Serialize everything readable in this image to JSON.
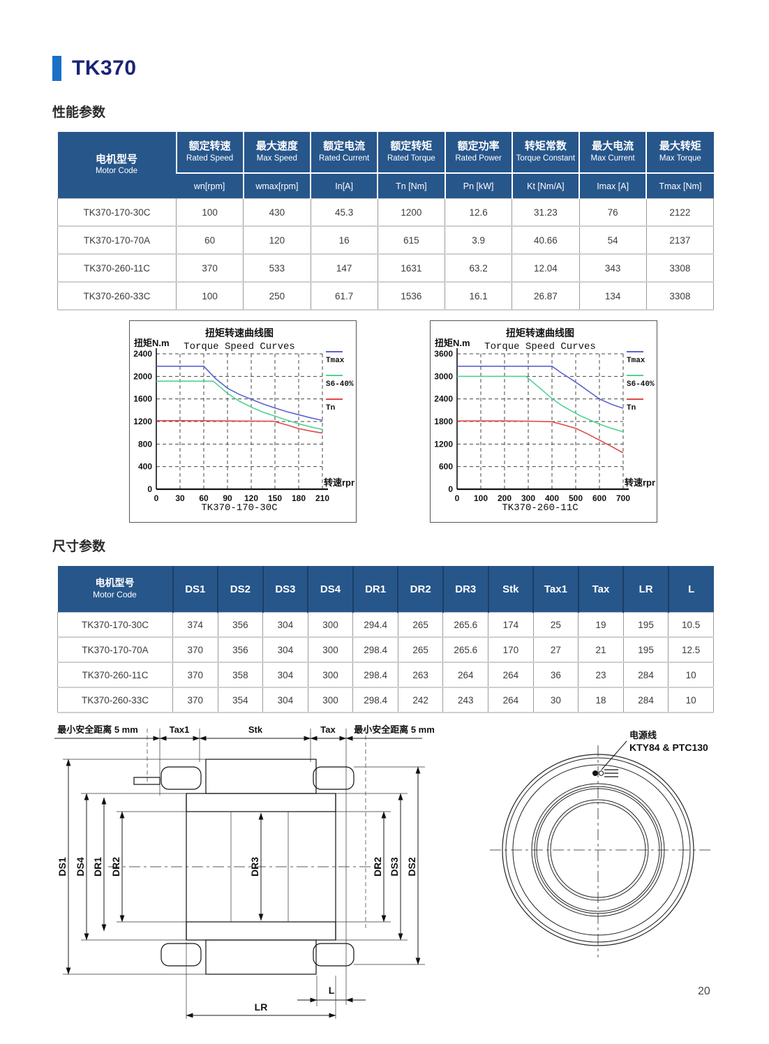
{
  "page": {
    "title": "TK370",
    "page_number": "20"
  },
  "sections": {
    "performance": "性能参数",
    "dimensions": "尺寸参数"
  },
  "perf_table": {
    "col0_zh": "电机型号",
    "col0_en": "Motor Code",
    "columns": [
      {
        "zh": "额定转速",
        "en": "Rated Speed",
        "unit": "wn[rpm]"
      },
      {
        "zh": "最大速度",
        "en": "Max Speed",
        "unit": "wmax[rpm]"
      },
      {
        "zh": "额定电流",
        "en": "Rated Current",
        "unit": "In[A]"
      },
      {
        "zh": "额定转矩",
        "en": "Rated Torque",
        "unit": "Tn [Nm]"
      },
      {
        "zh": "额定功率",
        "en": "Rated Power",
        "unit": "Pn [kW]"
      },
      {
        "zh": "转矩常数",
        "en": "Torque Constant",
        "unit": "Kt [Nm/A]"
      },
      {
        "zh": "最大电流",
        "en": "Max Current",
        "unit": "Imax [A]"
      },
      {
        "zh": "最大转矩",
        "en": "Max Torque",
        "unit": "Tmax [Nm]"
      }
    ],
    "rows": [
      [
        "TK370-170-30C",
        "100",
        "430",
        "45.3",
        "1200",
        "12.6",
        "31.23",
        "76",
        "2122"
      ],
      [
        "TK370-170-70A",
        "60",
        "120",
        "16",
        "615",
        "3.9",
        "40.66",
        "54",
        "2137"
      ],
      [
        "TK370-260-11C",
        "370",
        "533",
        "147",
        "1631",
        "63.2",
        "12.04",
        "343",
        "3308"
      ],
      [
        "TK370-260-33C",
        "100",
        "250",
        "61.7",
        "1536",
        "16.1",
        "26.87",
        "134",
        "3308"
      ]
    ]
  },
  "dim_table": {
    "col0_zh": "电机型号",
    "col0_en": "Motor Code",
    "columns": [
      "DS1",
      "DS2",
      "DS3",
      "DS4",
      "DR1",
      "DR2",
      "DR3",
      "Stk",
      "Tax1",
      "Tax",
      "LR",
      "L"
    ],
    "rows": [
      [
        "TK370-170-30C",
        "374",
        "356",
        "304",
        "300",
        "294.4",
        "265",
        "265.6",
        "174",
        "25",
        "19",
        "195",
        "10.5"
      ],
      [
        "TK370-170-70A",
        "370",
        "356",
        "304",
        "300",
        "298.4",
        "265",
        "265.6",
        "170",
        "27",
        "21",
        "195",
        "12.5"
      ],
      [
        "TK370-260-11C",
        "370",
        "358",
        "304",
        "300",
        "298.4",
        "263",
        "264",
        "264",
        "36",
        "23",
        "284",
        "10"
      ],
      [
        "TK370-260-33C",
        "370",
        "354",
        "304",
        "300",
        "298.4",
        "242",
        "243",
        "264",
        "30",
        "18",
        "284",
        "10"
      ]
    ]
  },
  "chart_data": [
    {
      "type": "line",
      "title_zh": "扭矩转速曲线图",
      "title_en": "Torque Speed Curves",
      "ylabel": "扭矩N.m",
      "xlabel": "转速rpm",
      "caption": "TK370-170-30C",
      "xlim": [
        0,
        210
      ],
      "ylim": [
        0,
        2400
      ],
      "xticks": [
        0,
        30,
        60,
        90,
        120,
        150,
        180,
        210
      ],
      "yticks": [
        0,
        400,
        800,
        1200,
        1600,
        2000,
        2400
      ],
      "grid": true,
      "legend_position": "right",
      "series": [
        {
          "name": "Tmax",
          "color": "#5a62d2",
          "points": [
            [
              0,
              2180
            ],
            [
              30,
              2180
            ],
            [
              60,
              2180
            ],
            [
              75,
              1960
            ],
            [
              90,
              1790
            ],
            [
              105,
              1680
            ],
            [
              120,
              1595
            ],
            [
              135,
              1510
            ],
            [
              150,
              1440
            ],
            [
              165,
              1375
            ],
            [
              180,
              1320
            ],
            [
              195,
              1265
            ],
            [
              210,
              1220
            ]
          ]
        },
        {
          "name": "S6-40%",
          "color": "#4fd391",
          "points": [
            [
              0,
              1915
            ],
            [
              30,
              1915
            ],
            [
              60,
              1915
            ],
            [
              72,
              1915
            ],
            [
              90,
              1700
            ],
            [
              105,
              1560
            ],
            [
              120,
              1455
            ],
            [
              135,
              1365
            ],
            [
              150,
              1295
            ],
            [
              165,
              1225
            ],
            [
              180,
              1160
            ],
            [
              195,
              1105
            ],
            [
              210,
              1060
            ]
          ]
        },
        {
          "name": "Tn",
          "color": "#e04848",
          "points": [
            [
              0,
              1215
            ],
            [
              60,
              1213
            ],
            [
              120,
              1208
            ],
            [
              148,
              1205
            ],
            [
              165,
              1140
            ],
            [
              180,
              1075
            ],
            [
              195,
              1030
            ],
            [
              210,
              995
            ]
          ]
        }
      ]
    },
    {
      "type": "line",
      "title_zh": "扭矩转速曲线图",
      "title_en": "Torque Speed Curves",
      "ylabel": "扭矩N.m",
      "xlabel": "转速rpm",
      "caption": "TK370-260-11C",
      "xlim": [
        0,
        700
      ],
      "ylim": [
        0,
        3600
      ],
      "xticks": [
        0,
        100,
        200,
        300,
        400,
        500,
        600,
        700
      ],
      "yticks": [
        0,
        600,
        1200,
        1800,
        2400,
        3000,
        3600
      ],
      "grid": true,
      "legend_position": "right",
      "series": [
        {
          "name": "Tmax",
          "color": "#5a62d2",
          "points": [
            [
              0,
              3270
            ],
            [
              100,
              3270
            ],
            [
              200,
              3270
            ],
            [
              300,
              3270
            ],
            [
              400,
              3270
            ],
            [
              440,
              3090
            ],
            [
              480,
              2930
            ],
            [
              520,
              2760
            ],
            [
              560,
              2580
            ],
            [
              600,
              2400
            ],
            [
              650,
              2260
            ],
            [
              700,
              2150
            ]
          ]
        },
        {
          "name": "S6-40%",
          "color": "#4fd391",
          "points": [
            [
              0,
              3000
            ],
            [
              100,
              3000
            ],
            [
              200,
              3000
            ],
            [
              290,
              3000
            ],
            [
              330,
              2790
            ],
            [
              360,
              2630
            ],
            [
              400,
              2410
            ],
            [
              440,
              2230
            ],
            [
              480,
              2090
            ],
            [
              520,
              1950
            ],
            [
              560,
              1840
            ],
            [
              600,
              1730
            ],
            [
              650,
              1620
            ],
            [
              700,
              1525
            ]
          ]
        },
        {
          "name": "Tn",
          "color": "#e04848",
          "points": [
            [
              0,
              1815
            ],
            [
              100,
              1815
            ],
            [
              200,
              1815
            ],
            [
              300,
              1810
            ],
            [
              400,
              1795
            ],
            [
              450,
              1710
            ],
            [
              500,
              1620
            ],
            [
              550,
              1470
            ],
            [
              600,
              1305
            ],
            [
              650,
              1140
            ],
            [
              700,
              965
            ]
          ]
        }
      ]
    }
  ],
  "drawing": {
    "safety_left": "最小安全距离 5 mm",
    "tax1": "Tax1",
    "stk": "Stk",
    "tax": "Tax",
    "safety_right": "最小安全距离 5 mm",
    "ds1": "DS1",
    "ds4": "DS4",
    "dr1": "DR1",
    "dr2_left": "DR2",
    "dr3": "DR3",
    "dr2_right": "DR2",
    "ds3": "DS3",
    "ds2": "DS2",
    "l": "L",
    "lr": "LR",
    "cable_zh": "电源线",
    "cable_en": "KTY84 & PTC130"
  }
}
